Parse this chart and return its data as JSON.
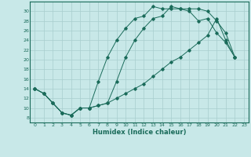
{
  "xlabel": "Humidex (Indice chaleur)",
  "background_color": "#c8e8e8",
  "grid_color": "#a8cece",
  "line_color": "#1a6b5a",
  "xlim": [
    -0.5,
    23.5
  ],
  "ylim": [
    7,
    32
  ],
  "xticks": [
    0,
    1,
    2,
    3,
    4,
    5,
    6,
    7,
    8,
    9,
    10,
    11,
    12,
    13,
    14,
    15,
    16,
    17,
    18,
    19,
    20,
    21,
    22,
    23
  ],
  "yticks": [
    8,
    10,
    12,
    14,
    16,
    18,
    20,
    22,
    24,
    26,
    28,
    30
  ],
  "line1_x": [
    0,
    1,
    2,
    3,
    4,
    5,
    6,
    7,
    8,
    9,
    10,
    11,
    12,
    13,
    14,
    15,
    16,
    17,
    18,
    19,
    20,
    21,
    22
  ],
  "line1_y": [
    14,
    13,
    11,
    9,
    8.5,
    10,
    10,
    10.5,
    11,
    15.5,
    20.5,
    24,
    26.5,
    28.5,
    29,
    31,
    30.5,
    30.5,
    30.5,
    30,
    28,
    25.5,
    20.5
  ],
  "line2_x": [
    0,
    1,
    2,
    3,
    4,
    5,
    6,
    7,
    8,
    9,
    10,
    11,
    12,
    13,
    14,
    15,
    16,
    17,
    18,
    19,
    20,
    21,
    22
  ],
  "line2_y": [
    14,
    13,
    11,
    9,
    8.5,
    10,
    10,
    15.5,
    20.5,
    24,
    26.5,
    28.5,
    29,
    31,
    30.5,
    30.5,
    30.5,
    30,
    28,
    28.5,
    25.5,
    23.5,
    20.5
  ],
  "line3_x": [
    0,
    1,
    2,
    3,
    4,
    5,
    6,
    7,
    8,
    9,
    10,
    11,
    12,
    13,
    14,
    15,
    16,
    17,
    18,
    19,
    20,
    21,
    22
  ],
  "line3_y": [
    14,
    13,
    11,
    9,
    8.5,
    10,
    10,
    10.5,
    11,
    12,
    13,
    14,
    15,
    16.5,
    18,
    19.5,
    20.5,
    22,
    23.5,
    25,
    28.5,
    24,
    20.5
  ]
}
